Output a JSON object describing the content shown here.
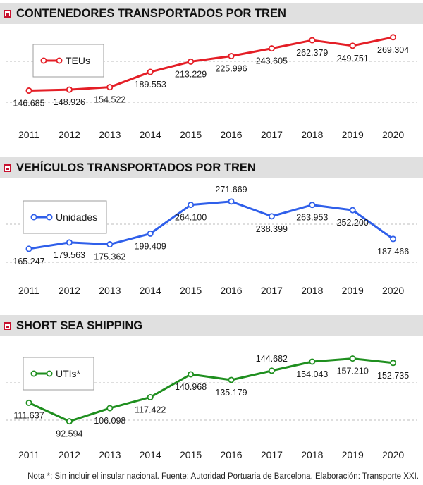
{
  "footnote": "Nota *: Sin incluir el insular nacional. Fuente: Autoridad Portuaria de Barcelona. Elaboración: Transporte XXI.",
  "chart_data": [
    {
      "type": "line",
      "title": "CONTENEDORES TRANSPORTADOS POR TREN",
      "categories": [
        "2011",
        "2012",
        "2013",
        "2014",
        "2015",
        "2016",
        "2017",
        "2018",
        "2019",
        "2020"
      ],
      "series": [
        {
          "name": "TEUs",
          "color": "#e41e26",
          "values": [
            146685,
            148926,
            154522,
            189553,
            213229,
            225996,
            243605,
            262379,
            249751,
            269304
          ],
          "labels": [
            "146.685",
            "148.926",
            "154.522",
            "189.553",
            "213.229",
            "225.996",
            "243.605",
            "262.379",
            "249.751",
            "269.304"
          ]
        }
      ],
      "ylim": [
        120000,
        290000
      ],
      "legend_position": "top-left",
      "grid": "dashed"
    },
    {
      "type": "line",
      "title": "VEHÍCULOS TRANSPORTADOS POR TREN",
      "categories": [
        "2011",
        "2012",
        "2013",
        "2014",
        "2015",
        "2016",
        "2017",
        "2018",
        "2019",
        "2020"
      ],
      "series": [
        {
          "name": "Unidades",
          "color": "#2f5fea",
          "values": [
            165247,
            179563,
            175362,
            199409,
            264100,
            271669,
            238399,
            263953,
            252200,
            187466
          ],
          "labels": [
            "165.247",
            "179.563",
            "175.362",
            "199.409",
            "264.100",
            "271.669",
            "238.399",
            "263.953",
            "252.200",
            "187.466"
          ]
        }
      ],
      "ylim": [
        135000,
        300000
      ],
      "legend_position": "top-left",
      "grid": "dashed"
    },
    {
      "type": "line",
      "title": "SHORT SEA SHIPPING",
      "categories": [
        "2011",
        "2012",
        "2013",
        "2014",
        "2015",
        "2016",
        "2017",
        "2018",
        "2019",
        "2020"
      ],
      "series": [
        {
          "name": "UTIs*",
          "color": "#1f8f1f",
          "values": [
            111637,
            92594,
            106098,
            117422,
            140968,
            135179,
            144682,
            154043,
            157210,
            152735
          ],
          "labels": [
            "111.637",
            "92.594",
            "106.098",
            "117.422",
            "140.968",
            "135.179",
            "144.682",
            "154.043",
            "157.210",
            "152.735"
          ]
        }
      ],
      "ylim": [
        80000,
        170000
      ],
      "legend_position": "top-left",
      "grid": "dashed"
    }
  ]
}
